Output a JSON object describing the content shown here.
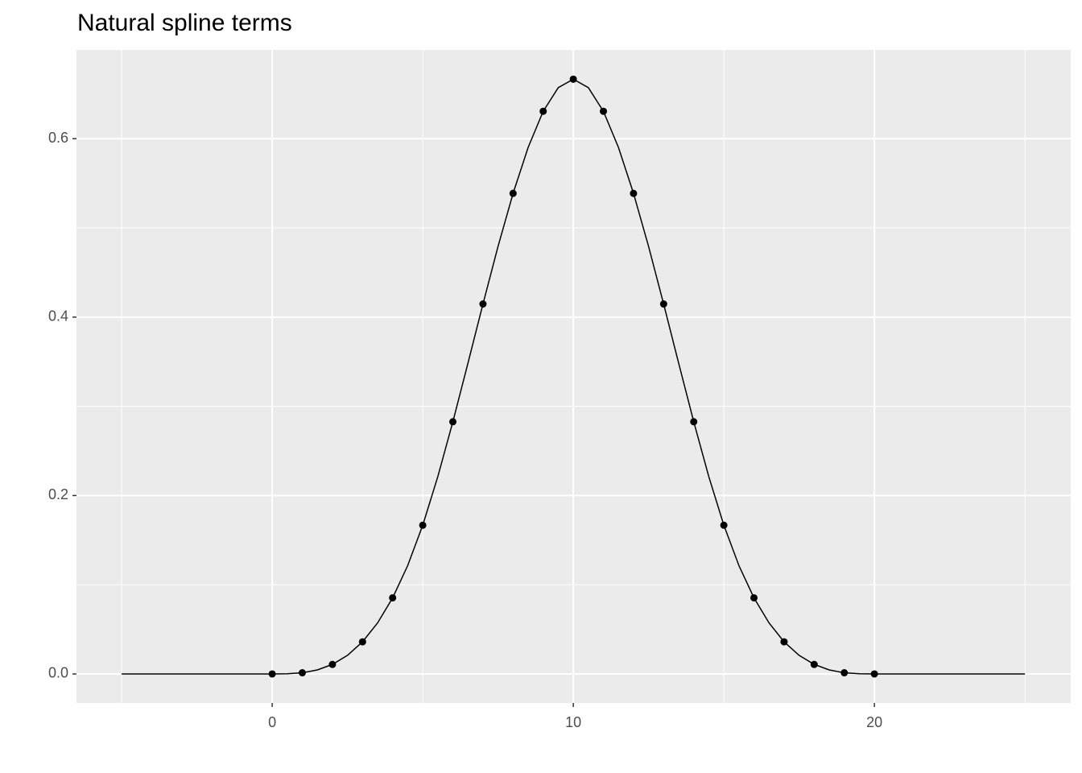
{
  "chart_data": {
    "type": "line",
    "title": "Natural spline terms",
    "xlim": [
      -6.5,
      26.52
    ],
    "ylim": [
      -0.0325,
      0.6995
    ],
    "xticks": [
      0,
      10,
      20
    ],
    "yticks": [
      {
        "value": 0,
        "label": "0.0"
      },
      {
        "value": 0.2,
        "label": "0.2"
      },
      {
        "value": 0.4,
        "label": "0.4"
      },
      {
        "value": 0.6,
        "label": "0.6"
      }
    ],
    "grid": true,
    "series": [
      {
        "kind": "line",
        "color": "#000000",
        "x": [
          -5,
          -4.5,
          -4,
          -3.5,
          -3,
          -2.5,
          -2,
          -1.5,
          -1,
          -0.5,
          0,
          0.5,
          1,
          1.5,
          2,
          2.5,
          3,
          3.5,
          4,
          4.5,
          5,
          5.5,
          6,
          6.5,
          7,
          7.5,
          8,
          8.5,
          9,
          9.5,
          10,
          10.5,
          11,
          11.5,
          12,
          12.5,
          13,
          13.5,
          14,
          14.5,
          15,
          15.5,
          16,
          16.5,
          17,
          17.5,
          18,
          18.5,
          19,
          19.5,
          20,
          20.5,
          21,
          21.5,
          22,
          22.5,
          23,
          23.5,
          24,
          24.5,
          25
        ],
        "values": [
          0,
          0,
          0,
          0,
          0,
          0,
          0,
          0,
          0,
          0,
          0,
          0.0002,
          0.0013,
          0.0045,
          0.0107,
          0.0208,
          0.036,
          0.0572,
          0.0853,
          0.1215,
          0.1667,
          0.2212,
          0.2827,
          0.3482,
          0.4147,
          0.4792,
          0.5387,
          0.5902,
          0.6307,
          0.6572,
          0.6667,
          0.6572,
          0.6307,
          0.5902,
          0.5387,
          0.4792,
          0.4147,
          0.3482,
          0.2827,
          0.2212,
          0.1667,
          0.1215,
          0.0853,
          0.0572,
          0.036,
          0.0208,
          0.0107,
          0.0045,
          0.0013,
          0.0002,
          0,
          0,
          0,
          0,
          0,
          0,
          0,
          0,
          0,
          0,
          0
        ]
      },
      {
        "kind": "points",
        "color": "#000000",
        "x": [
          0,
          1,
          2,
          3,
          4,
          5,
          6,
          7,
          8,
          9,
          10,
          11,
          12,
          13,
          14,
          15,
          16,
          17,
          18,
          19,
          20
        ],
        "values": [
          0,
          0.0013,
          0.0107,
          0.036,
          0.0853,
          0.1667,
          0.2827,
          0.4147,
          0.5387,
          0.6307,
          0.6667,
          0.6307,
          0.5387,
          0.4147,
          0.2827,
          0.1667,
          0.0853,
          0.036,
          0.0107,
          0.0013,
          0
        ]
      }
    ]
  }
}
